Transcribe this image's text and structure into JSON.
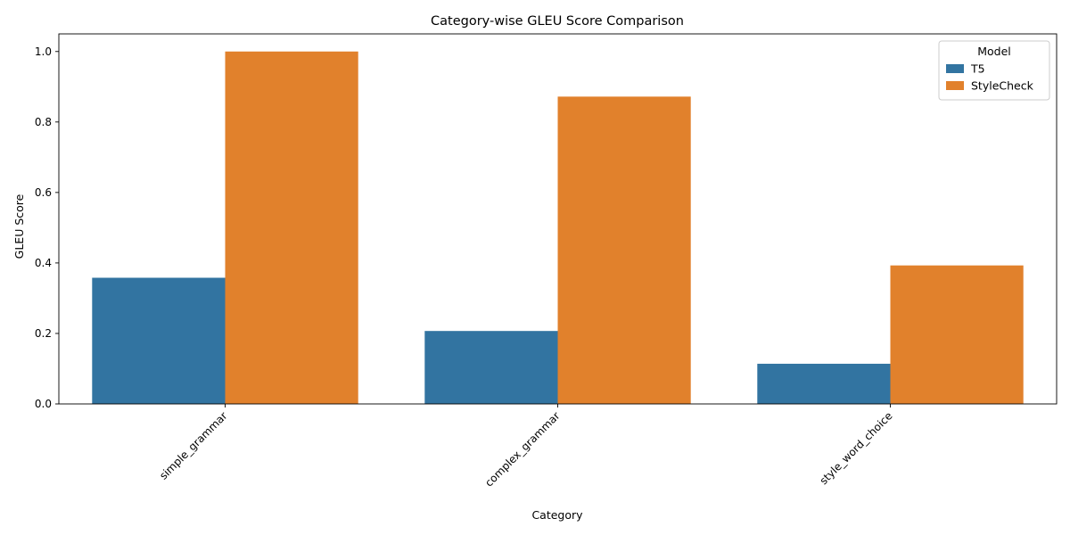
{
  "chart_data": {
    "type": "bar",
    "title": "Category-wise GLEU Score Comparison",
    "xlabel": "Category",
    "ylabel": "GLEU Score",
    "categories": [
      "simple_grammar",
      "complex_grammar",
      "style_word_choice"
    ],
    "series": [
      {
        "name": "T5",
        "values": [
          0.358,
          0.207,
          0.114
        ],
        "color": "#3274a1"
      },
      {
        "name": "StyleCheck",
        "values": [
          1.0,
          0.872,
          0.393
        ],
        "color": "#e1812c"
      }
    ],
    "ylim": [
      0,
      1.05
    ],
    "yticks": [
      "0.0",
      "0.2",
      "0.4",
      "0.6",
      "0.8",
      "1.0"
    ],
    "grid": false,
    "legend": {
      "title": "Model",
      "placement": "top-right"
    }
  }
}
